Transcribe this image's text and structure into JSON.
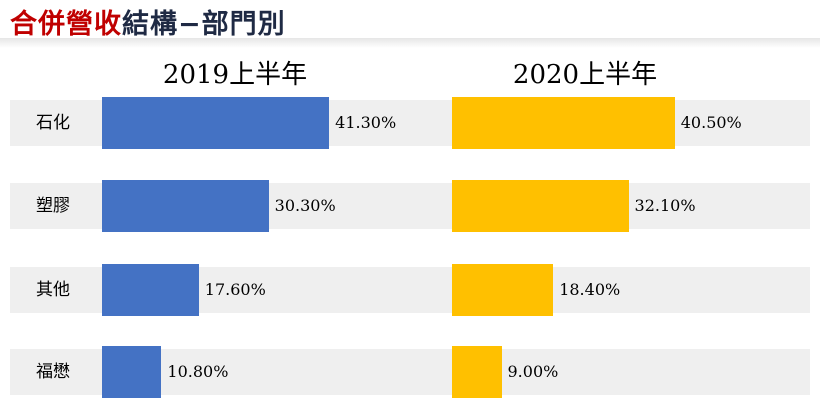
{
  "title": {
    "red": "合併營收",
    "dark": "結構−部門別"
  },
  "chart_data": [
    {
      "type": "bar",
      "title": "2019上半年",
      "categories": [
        "石化",
        "塑膠",
        "其他",
        "福懋"
      ],
      "values": [
        41.3,
        30.3,
        17.6,
        10.8
      ],
      "labels": [
        "41.30%",
        "30.30%",
        "17.60%",
        "10.80%"
      ],
      "color": "#4472c4",
      "xlim": [
        0,
        100
      ],
      "orientation": "horizontal",
      "grid": false
    },
    {
      "type": "bar",
      "title": "2020上半年",
      "categories": [
        "石化",
        "塑膠",
        "其他",
        "福懋"
      ],
      "values": [
        40.5,
        32.1,
        18.4,
        9.0
      ],
      "labels": [
        "40.50%",
        "32.10%",
        "18.40%",
        "9.00%"
      ],
      "color": "#ffc000",
      "xlim": [
        0,
        100
      ],
      "orientation": "horizontal",
      "grid": false
    }
  ]
}
